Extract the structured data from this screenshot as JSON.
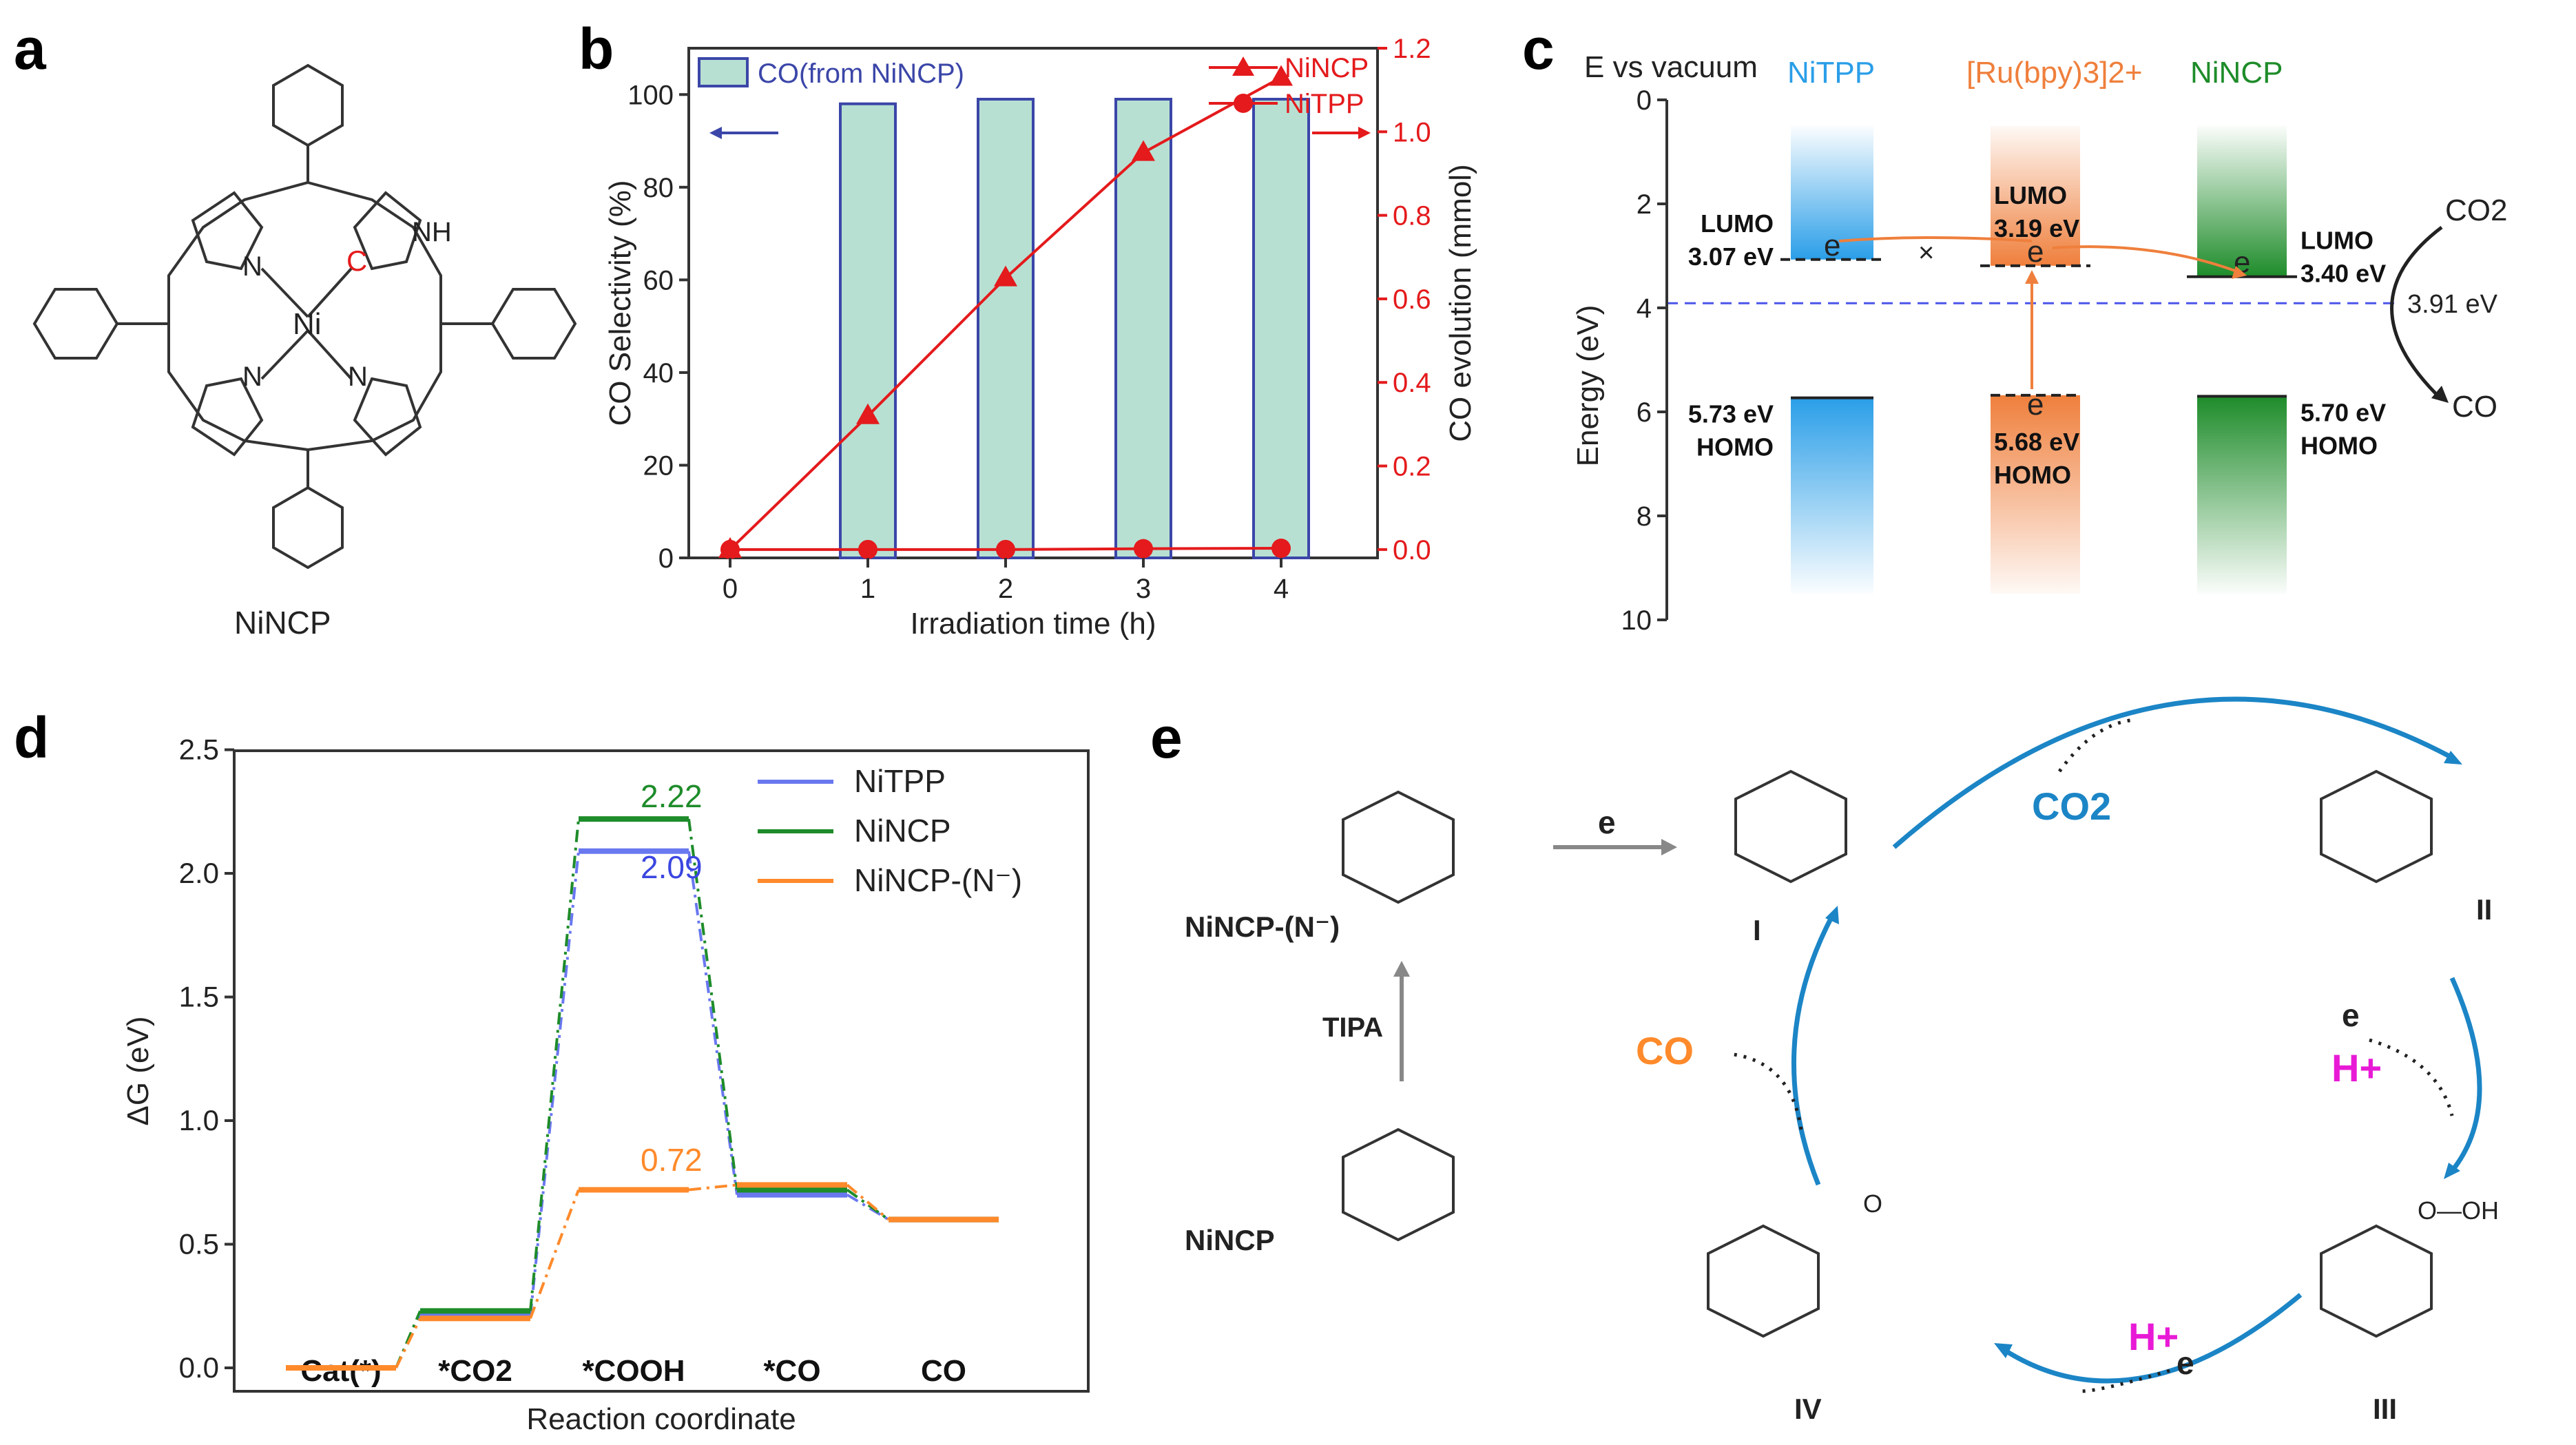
{
  "panel_labels": {
    "a": "a",
    "b": "b",
    "c": "c",
    "d": "d",
    "e": "e"
  },
  "panel_a": {
    "molecule_name": "NiNCP",
    "atom_ni": "Ni",
    "atom_n": "N",
    "atom_c": "C",
    "atom_nh": "NH"
  },
  "colors": {
    "blue": "#3b46a8",
    "red": "#e41a1c",
    "teal": "#b7e0d2",
    "green": "#1e8c2a",
    "orange": "#ff8a2b",
    "lightblue": "#2a9ee8",
    "gray": "#555555",
    "cyan": "#1b85c6",
    "magenta": "#e81ad6"
  },
  "chart_data": [
    {
      "id": "b",
      "type": "bar+line",
      "xlabel": "Irradiation time (h)",
      "ylabel_left": "CO Selectivity (%)",
      "ylabel_right": "CO evolution (mmol)",
      "x": [
        0,
        1,
        2,
        3,
        4
      ],
      "x_ticks": [
        "0",
        "1",
        "2",
        "3",
        "4"
      ],
      "ylim_left": [
        0,
        110
      ],
      "ylim_right": [
        -0.02,
        1.2
      ],
      "y_ticks_left": [
        "0",
        "20",
        "40",
        "60",
        "80",
        "100"
      ],
      "y_ticks_right": [
        "0.0",
        "0.2",
        "0.4",
        "0.6",
        "0.8",
        "1.0",
        "1.2"
      ],
      "bars": {
        "name": "CO(from NiNCP)",
        "x": [
          1,
          2,
          3,
          4
        ],
        "values": [
          98,
          99,
          99,
          99
        ]
      },
      "series": [
        {
          "name": "NiNCP",
          "marker": "triangle",
          "values": [
            0.0,
            0.32,
            0.65,
            0.95,
            1.13
          ]
        },
        {
          "name": "NiTPP",
          "marker": "circle",
          "values": [
            0.0,
            0.0,
            0.0,
            0.002,
            0.003
          ]
        }
      ]
    },
    {
      "id": "c",
      "type": "energy-level diagram",
      "title": "E vs vacuum",
      "ylabel": "Energy (eV)",
      "ylim": [
        0,
        10
      ],
      "y_ticks": [
        "0",
        "2",
        "4",
        "6",
        "8",
        "10"
      ],
      "columns": [
        {
          "name": "NiTPP",
          "lumo": 3.07,
          "homo": 5.73,
          "lumo_label": "LUMO\n3.07 eV",
          "homo_label": "5.73 eV\nHOMO"
        },
        {
          "name": "[Ru(bpy)3]2+",
          "lumo": 3.19,
          "homo": 5.68,
          "lumo_label": "LUMO\n3.19 eV",
          "homo_label": "5.68 eV\nHOMO"
        },
        {
          "name": "NiNCP",
          "lumo": 3.4,
          "homo": 5.7,
          "lumo_label": "LUMO\n3.40 eV",
          "homo_label": "5.70 eV\nHOMO"
        }
      ],
      "reference_line": {
        "value": 3.91,
        "label": "3.91 eV"
      },
      "reactant": "CO2",
      "product": "CO",
      "electron": "e",
      "blocked": "×"
    },
    {
      "id": "d",
      "type": "free energy diagram",
      "xlabel": "Reaction coordinate",
      "ylabel": "ΔG (eV)",
      "ylim": [
        0,
        2.5
      ],
      "y_ticks": [
        "0.0",
        "0.5",
        "1.0",
        "1.5",
        "2.0",
        "2.5"
      ],
      "categories": [
        "Cat(*)",
        "*CO2",
        "*COOH",
        "*CO",
        "CO"
      ],
      "series": [
        {
          "name": "NiTPP",
          "values": [
            0.0,
            0.21,
            2.09,
            0.7,
            0.6
          ]
        },
        {
          "name": "NiNCP",
          "values": [
            0.0,
            0.23,
            2.22,
            0.72,
            0.6
          ]
        },
        {
          "name": "NiNCP-(N⁻)",
          "values": [
            0.0,
            0.2,
            0.72,
            0.74,
            0.6
          ]
        }
      ],
      "annotations": [
        "2.22",
        "2.09",
        "0.72"
      ]
    }
  ],
  "panel_e": {
    "species": {
      "start": "NiNCP-(N⁻)",
      "precursor": "NiNCP",
      "I": "I",
      "II": "II",
      "III": "III",
      "IV": "IV"
    },
    "reagent": "TIPA",
    "electron": "e",
    "co2": "CO2",
    "proton": "H+",
    "co": "CO",
    "ligand_cooh": "O—OH",
    "ligand_o": "O"
  }
}
